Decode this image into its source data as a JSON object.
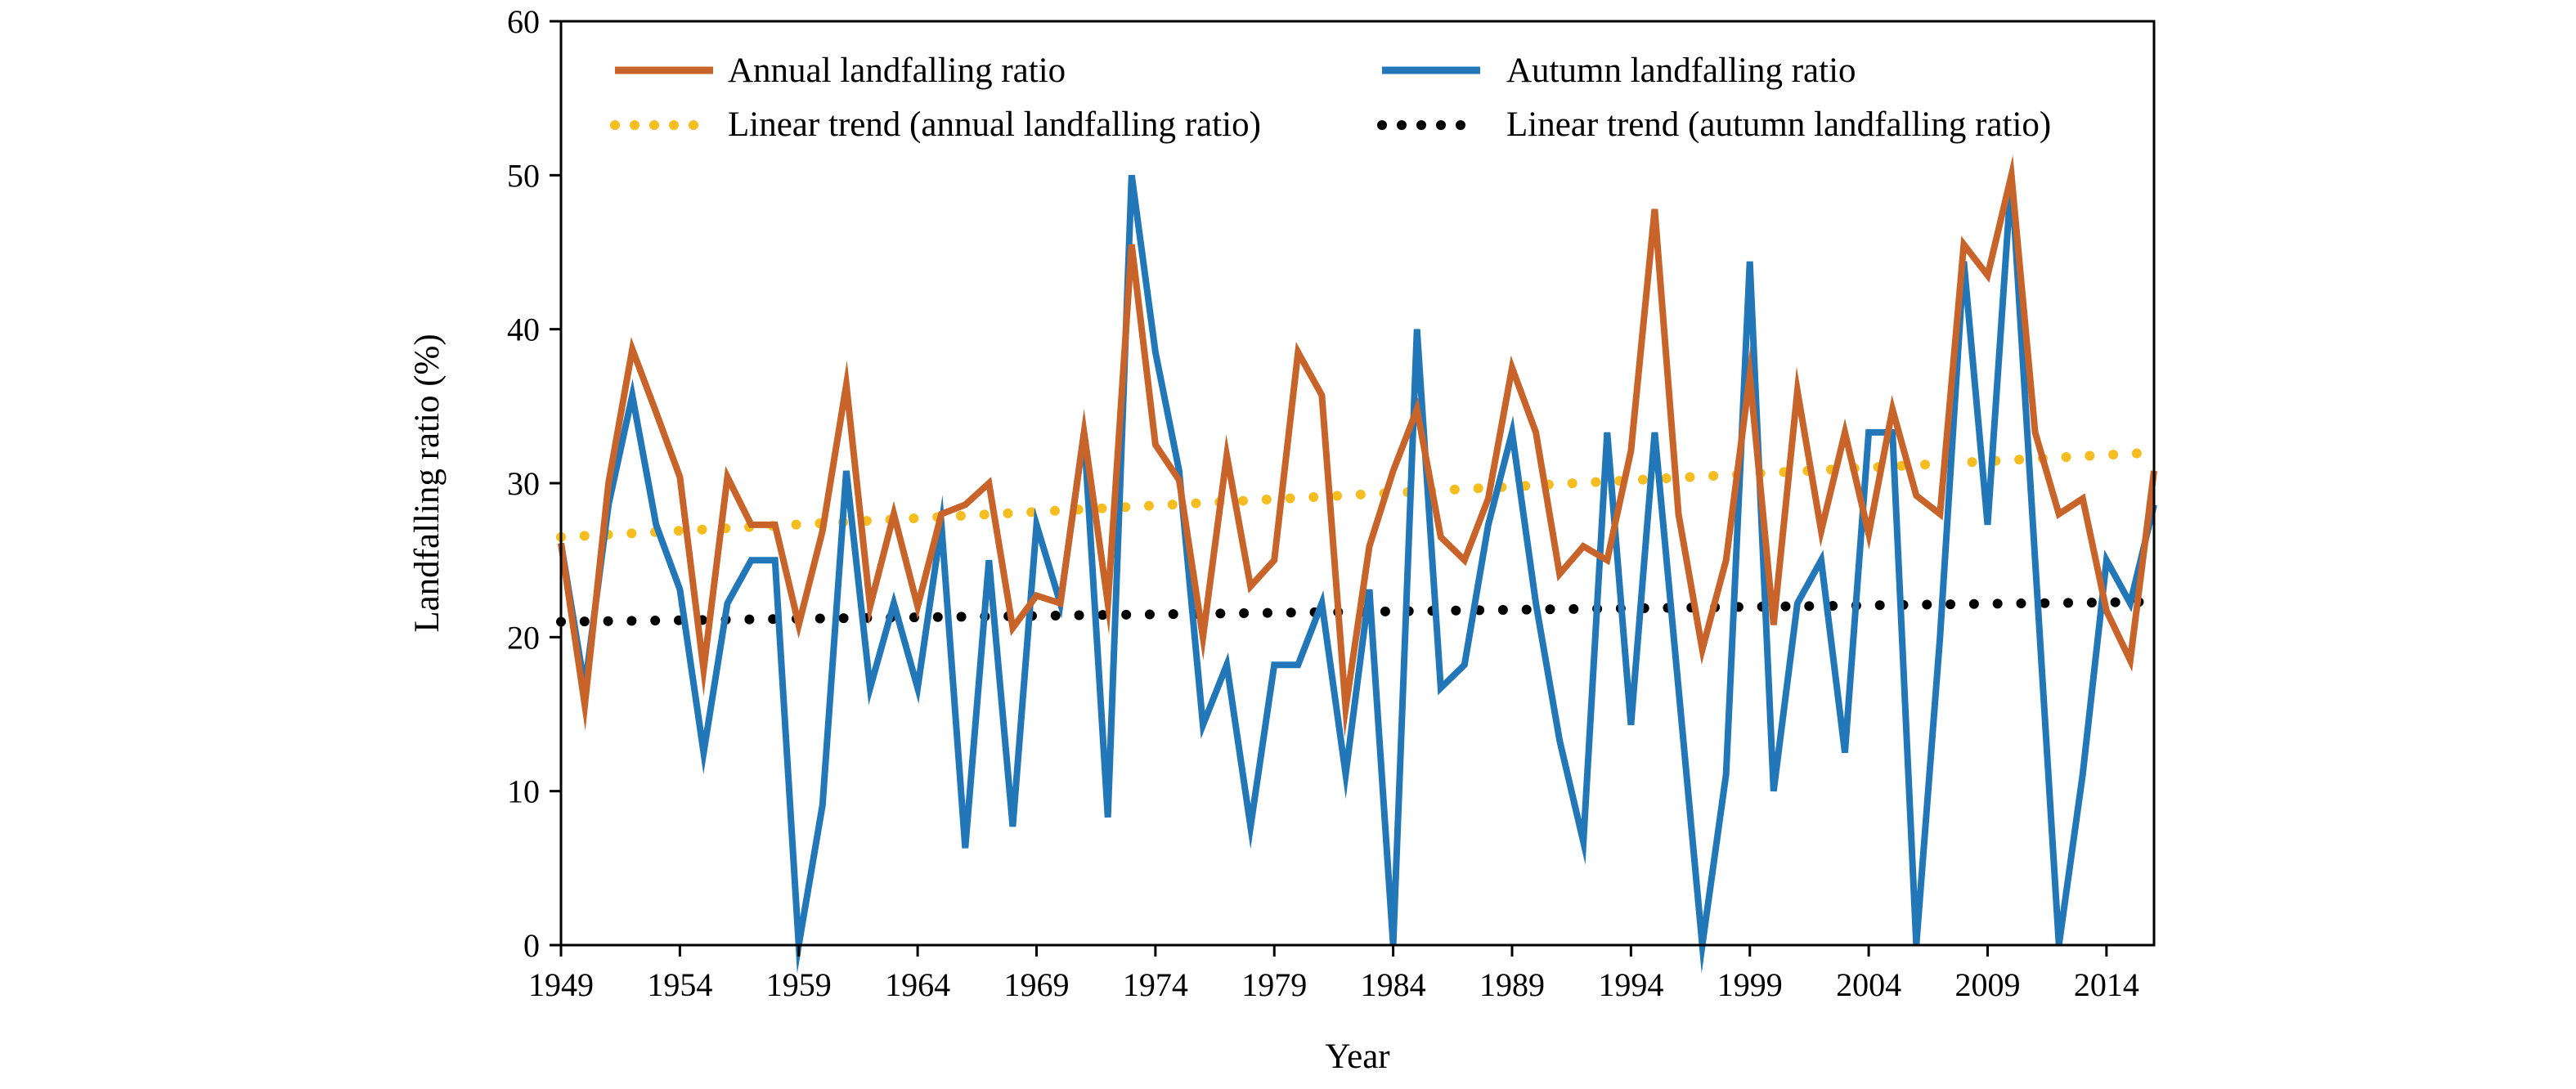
{
  "colors": {
    "annual": "#c8632a",
    "autumn": "#2277b8",
    "annual_trend": "#f5bd1f",
    "autumn_trend": "#000000"
  },
  "chart_data": {
    "type": "line",
    "xlabel": "Year",
    "ylabel": "Landfalling ratio (%)",
    "xlim": [
      1949,
      2016
    ],
    "ylim": [
      0,
      60
    ],
    "x_ticks": [
      "1949",
      "1954",
      "1959",
      "1964",
      "1969",
      "1974",
      "1979",
      "1984",
      "1989",
      "1994",
      "1999",
      "2004",
      "2009",
      "2014"
    ],
    "y_ticks": [
      "0",
      "10",
      "20",
      "30",
      "40",
      "50",
      "60"
    ],
    "legend_placement": "top",
    "x": [
      1949,
      1950,
      1951,
      1952,
      1953,
      1954,
      1955,
      1956,
      1957,
      1958,
      1959,
      1960,
      1961,
      1962,
      1963,
      1964,
      1965,
      1966,
      1967,
      1968,
      1969,
      1970,
      1971,
      1972,
      1973,
      1974,
      1975,
      1976,
      1977,
      1978,
      1979,
      1980,
      1981,
      1982,
      1983,
      1984,
      1985,
      1986,
      1987,
      1988,
      1989,
      1990,
      1991,
      1992,
      1993,
      1994,
      1995,
      1996,
      1997,
      1998,
      1999,
      2000,
      2001,
      2002,
      2003,
      2004,
      2005,
      2006,
      2007,
      2008,
      2009,
      2010,
      2011,
      2012,
      2013,
      2014,
      2015,
      2016
    ],
    "series": [
      {
        "name": "Annual landfalling ratio",
        "values": [
          26.1,
          15.6,
          30.0,
          38.7,
          34.6,
          30.4,
          17.9,
          30.4,
          27.3,
          27.3,
          20.8,
          26.9,
          36.4,
          22.0,
          28.0,
          22.0,
          28.0,
          28.6,
          30.0,
          20.6,
          22.7,
          22.2,
          33.3,
          22.2,
          45.5,
          32.5,
          30.2,
          20.0,
          31.8,
          23.3,
          25.0,
          38.5,
          35.7,
          15.4,
          25.9,
          30.8,
          34.8,
          26.5,
          25.0,
          29.0,
          37.5,
          33.3,
          24.1,
          25.9,
          25.0,
          32.1,
          47.8,
          28.0,
          19.2,
          25.0,
          37.0,
          20.8,
          36.0,
          26.9,
          33.3,
          26.7,
          34.8,
          29.2,
          28.0,
          45.5,
          43.5,
          50.0,
          33.3,
          28.0,
          29.0,
          21.7,
          18.5,
          30.8
        ]
      },
      {
        "name": "Autumn landfalling ratio",
        "values": [
          26.1,
          16.7,
          28.6,
          35.7,
          27.3,
          23.1,
          12.5,
          22.2,
          25.0,
          25.0,
          0.0,
          9.1,
          30.8,
          16.7,
          22.2,
          16.7,
          27.3,
          6.3,
          25.0,
          7.7,
          27.3,
          22.2,
          33.3,
          8.3,
          50.0,
          38.5,
          30.8,
          14.3,
          18.2,
          7.7,
          18.2,
          18.2,
          22.2,
          11.1,
          23.1,
          0.0,
          40.0,
          16.7,
          18.2,
          27.3,
          33.3,
          22.2,
          13.3,
          6.7,
          33.3,
          14.3,
          33.3,
          16.7,
          0.0,
          11.1,
          44.4,
          10.0,
          22.2,
          25.0,
          12.5,
          33.3,
          33.3,
          0.0,
          20.0,
          44.4,
          27.3,
          50.0,
          25.0,
          0.0,
          11.1,
          25.0,
          22.2,
          28.6
        ]
      },
      {
        "name": "Linear trend (annual landfalling ratio)",
        "trend": true,
        "values_start_end": [
          26.5,
          32.0
        ]
      },
      {
        "name": "Linear trend (autumn landfalling ratio)",
        "trend": true,
        "values_start_end": [
          21.0,
          22.3
        ]
      }
    ]
  }
}
